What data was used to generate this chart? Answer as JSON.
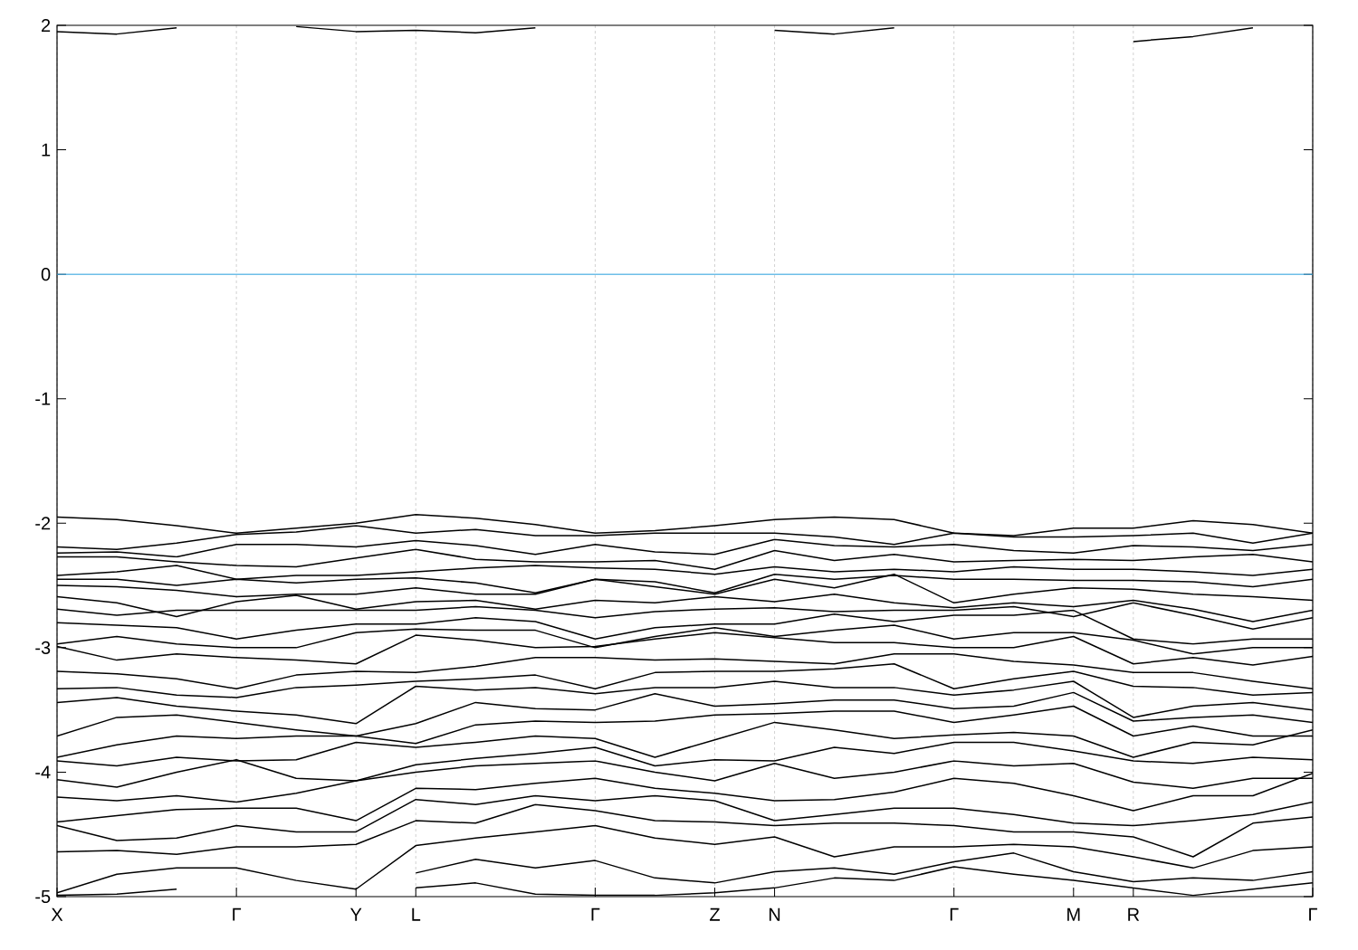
{
  "chart_data": {
    "type": "line",
    "categories": [
      "X",
      null,
      null,
      "Γ",
      null,
      "Y",
      "L",
      null,
      null,
      "Γ",
      null,
      "Z",
      "N",
      null,
      null,
      "Γ",
      null,
      "M",
      "R",
      null,
      null,
      "Γ"
    ],
    "ylim": [
      -5,
      2
    ],
    "yticks": [
      -5,
      -4,
      -3,
      -2,
      -1,
      0,
      1,
      2
    ],
    "grid": "x",
    "line_style": "solid",
    "ref_lines": [
      {
        "axis": "y",
        "value": 0,
        "color": "#3ea8e0"
      }
    ],
    "series": [
      {
        "color": "#000000",
        "values": [
          1.95,
          1.93,
          1.98,
          null,
          1.99,
          1.95,
          1.96,
          1.94,
          1.98,
          null,
          null,
          null,
          1.96,
          1.93,
          1.98,
          null,
          null,
          null,
          1.87,
          1.91,
          1.98,
          null
        ]
      },
      {
        "color": "#000000",
        "values": [
          -1.95,
          -1.97,
          -2.02,
          -2.08,
          -2.04,
          -2.0,
          -1.93,
          -1.96,
          -2.01,
          -2.08,
          -2.06,
          -2.02,
          -1.97,
          -1.95,
          -1.97,
          -2.08,
          -2.1,
          -2.04,
          -2.04,
          -1.98,
          -2.01,
          -2.08
        ]
      },
      {
        "color": "#000000",
        "values": [
          -2.19,
          -2.21,
          -2.16,
          -2.09,
          -2.07,
          -2.02,
          -2.08,
          -2.05,
          -2.1,
          -2.1,
          -2.08,
          -2.08,
          -2.08,
          -2.11,
          -2.17,
          -2.08,
          -2.11,
          -2.11,
          -2.1,
          -2.08,
          -2.16,
          -2.08
        ]
      },
      {
        "color": "#000000",
        "values": [
          -2.24,
          -2.23,
          -2.27,
          -2.17,
          -2.17,
          -2.19,
          -2.14,
          -2.18,
          -2.25,
          -2.17,
          -2.23,
          -2.25,
          -2.13,
          -2.18,
          -2.19,
          -2.17,
          -2.22,
          -2.24,
          -2.18,
          -2.19,
          -2.22,
          -2.17
        ]
      },
      {
        "color": "#000000",
        "values": [
          -2.27,
          -2.27,
          -2.31,
          -2.34,
          -2.35,
          -2.28,
          -2.21,
          -2.29,
          -2.31,
          -2.31,
          -2.3,
          -2.37,
          -2.22,
          -2.3,
          -2.25,
          -2.31,
          -2.3,
          -2.29,
          -2.3,
          -2.27,
          -2.25,
          -2.31
        ]
      },
      {
        "color": "#000000",
        "values": [
          -2.42,
          -2.39,
          -2.34,
          -2.45,
          -2.42,
          -2.42,
          -2.39,
          -2.36,
          -2.34,
          -2.36,
          -2.37,
          -2.41,
          -2.35,
          -2.39,
          -2.37,
          -2.39,
          -2.35,
          -2.37,
          -2.37,
          -2.39,
          -2.42,
          -2.37
        ]
      },
      {
        "color": "#000000",
        "values": [
          -2.45,
          -2.45,
          -2.5,
          -2.45,
          -2.48,
          -2.45,
          -2.44,
          -2.48,
          -2.56,
          -2.45,
          -2.47,
          -2.56,
          -2.41,
          -2.45,
          -2.42,
          -2.45,
          -2.45,
          -2.46,
          -2.46,
          -2.47,
          -2.51,
          -2.45
        ]
      },
      {
        "color": "#000000",
        "values": [
          -2.5,
          -2.51,
          -2.54,
          -2.59,
          -2.57,
          -2.57,
          -2.52,
          -2.57,
          -2.57,
          -2.45,
          -2.51,
          -2.57,
          -2.45,
          -2.52,
          -2.41,
          -2.64,
          -2.57,
          -2.52,
          -2.53,
          -2.57,
          -2.59,
          -2.62
        ]
      },
      {
        "color": "#000000",
        "values": [
          -2.59,
          -2.64,
          -2.75,
          -2.63,
          -2.58,
          -2.69,
          -2.63,
          -2.62,
          -2.69,
          -2.62,
          -2.64,
          -2.59,
          -2.63,
          -2.57,
          -2.64,
          -2.68,
          -2.64,
          -2.67,
          -2.62,
          -2.69,
          -2.79,
          -2.7
        ]
      },
      {
        "color": "#000000",
        "values": [
          -2.69,
          -2.74,
          -2.7,
          -2.7,
          -2.7,
          -2.7,
          -2.7,
          -2.67,
          -2.7,
          -2.76,
          -2.71,
          -2.69,
          -2.68,
          -2.71,
          -2.7,
          -2.7,
          -2.67,
          -2.75,
          -2.64,
          -2.74,
          -2.85,
          -2.76
        ]
      },
      {
        "color": "#000000",
        "values": [
          -2.8,
          -2.82,
          -2.84,
          -2.93,
          -2.86,
          -2.81,
          -2.81,
          -2.76,
          -2.79,
          -2.93,
          -2.84,
          -2.81,
          -2.81,
          -2.73,
          -2.79,
          -2.74,
          -2.74,
          -2.7,
          -2.93,
          -2.97,
          -2.93,
          -2.93
        ]
      },
      {
        "color": "#000000",
        "values": [
          -2.97,
          -2.91,
          -2.97,
          -3.0,
          -3.0,
          -2.88,
          -2.85,
          -2.86,
          -2.86,
          -3.0,
          -2.91,
          -2.84,
          -2.91,
          -2.86,
          -2.82,
          -2.93,
          -2.88,
          -2.88,
          -2.94,
          -3.05,
          -3.0,
          -3.0
        ]
      },
      {
        "color": "#000000",
        "values": [
          -2.99,
          -3.1,
          -3.05,
          -3.08,
          -3.1,
          -3.13,
          -2.9,
          -2.94,
          -3.0,
          -2.99,
          -2.93,
          -2.88,
          -2.92,
          -2.96,
          -2.96,
          -3.0,
          -3.0,
          -2.91,
          -3.13,
          -3.08,
          -3.14,
          -3.07
        ]
      },
      {
        "color": "#000000",
        "values": [
          -3.19,
          -3.21,
          -3.25,
          -3.33,
          -3.22,
          -3.19,
          -3.2,
          -3.15,
          -3.08,
          -3.08,
          -3.1,
          -3.09,
          -3.11,
          -3.13,
          -3.05,
          -3.05,
          -3.11,
          -3.14,
          -3.2,
          -3.2,
          -3.27,
          -3.33
        ]
      },
      {
        "color": "#000000",
        "values": [
          -3.33,
          -3.32,
          -3.38,
          -3.4,
          -3.32,
          -3.3,
          -3.27,
          -3.25,
          -3.22,
          -3.33,
          -3.2,
          -3.19,
          -3.19,
          -3.17,
          -3.13,
          -3.33,
          -3.25,
          -3.19,
          -3.31,
          -3.32,
          -3.38,
          -3.36
        ]
      },
      {
        "color": "#000000",
        "values": [
          -3.44,
          -3.4,
          -3.47,
          -3.51,
          -3.54,
          -3.61,
          -3.31,
          -3.34,
          -3.32,
          -3.37,
          -3.32,
          -3.32,
          -3.27,
          -3.32,
          -3.32,
          -3.38,
          -3.34,
          -3.27,
          -3.56,
          -3.47,
          -3.44,
          -3.5
        ]
      },
      {
        "color": "#000000",
        "values": [
          -3.71,
          -3.56,
          -3.54,
          -3.6,
          -3.66,
          -3.71,
          -3.61,
          -3.44,
          -3.49,
          -3.5,
          -3.37,
          -3.47,
          -3.45,
          -3.42,
          -3.42,
          -3.49,
          -3.47,
          -3.36,
          -3.59,
          -3.56,
          -3.54,
          -3.6
        ]
      },
      {
        "color": "#000000",
        "values": [
          -3.88,
          -3.78,
          -3.71,
          -3.73,
          -3.71,
          -3.71,
          -3.77,
          -3.62,
          -3.59,
          -3.6,
          -3.59,
          -3.54,
          -3.53,
          -3.51,
          -3.51,
          -3.6,
          -3.54,
          -3.47,
          -3.71,
          -3.63,
          -3.71,
          -3.71
        ]
      },
      {
        "color": "#000000",
        "values": [
          -3.91,
          -3.95,
          -3.88,
          -3.91,
          -3.9,
          -3.76,
          -3.8,
          -3.76,
          -3.71,
          -3.73,
          -3.88,
          -3.74,
          -3.6,
          -3.66,
          -3.73,
          -3.7,
          -3.68,
          -3.71,
          -3.88,
          -3.76,
          -3.78,
          -3.66
        ]
      },
      {
        "color": "#000000",
        "values": [
          -4.06,
          -4.12,
          -4.0,
          -3.9,
          -4.05,
          -4.07,
          -3.94,
          -3.89,
          -3.85,
          -3.8,
          -3.95,
          -3.9,
          -3.91,
          -3.8,
          -3.85,
          -3.76,
          -3.76,
          -3.83,
          -3.91,
          -3.93,
          -3.88,
          -3.9
        ]
      },
      {
        "color": "#000000",
        "values": [
          -4.2,
          -4.23,
          -4.19,
          -4.24,
          -4.17,
          -4.07,
          -4.0,
          -3.95,
          -3.93,
          -3.91,
          -4.0,
          -4.07,
          -3.93,
          -4.05,
          -4.0,
          -3.91,
          -3.95,
          -3.93,
          -4.08,
          -4.13,
          -4.05,
          -4.05
        ]
      },
      {
        "color": "#000000",
        "values": [
          -4.4,
          -4.35,
          -4.3,
          -4.29,
          -4.29,
          -4.39,
          -4.13,
          -4.14,
          -4.09,
          -4.05,
          -4.13,
          -4.17,
          -4.23,
          -4.22,
          -4.16,
          -4.05,
          -4.09,
          -4.19,
          -4.31,
          -4.19,
          -4.19,
          -4.01
        ]
      },
      {
        "color": "#000000",
        "values": [
          -4.43,
          -4.55,
          -4.53,
          -4.43,
          -4.48,
          -4.48,
          -4.22,
          -4.26,
          -4.19,
          -4.23,
          -4.19,
          -4.23,
          -4.39,
          -4.34,
          -4.29,
          -4.29,
          -4.34,
          -4.41,
          -4.43,
          -4.39,
          -4.34,
          -4.24
        ]
      },
      {
        "color": "#000000",
        "values": [
          -4.64,
          -4.63,
          -4.66,
          -4.6,
          -4.6,
          -4.58,
          -4.39,
          -4.41,
          -4.26,
          -4.31,
          -4.39,
          -4.4,
          -4.43,
          -4.41,
          -4.41,
          -4.43,
          -4.48,
          -4.48,
          -4.52,
          -4.68,
          -4.41,
          -4.36
        ]
      },
      {
        "color": "#000000",
        "values": [
          -4.97,
          -4.82,
          -4.77,
          -4.77,
          -4.87,
          -4.94,
          -4.59,
          -4.53,
          -4.48,
          -4.43,
          -4.53,
          -4.58,
          -4.52,
          -4.68,
          -4.6,
          -4.6,
          -4.58,
          -4.6,
          -4.68,
          -4.77,
          -4.63,
          -4.6
        ]
      },
      {
        "color": "#000000",
        "values": [
          -4.99,
          -4.98,
          -4.94,
          null,
          null,
          null,
          -4.81,
          -4.7,
          -4.77,
          -4.71,
          -4.85,
          -4.89,
          -4.8,
          -4.77,
          -4.82,
          -4.72,
          -4.65,
          -4.8,
          -4.88,
          -4.85,
          -4.87,
          -4.8
        ]
      },
      {
        "color": "#000000",
        "values": [
          null,
          null,
          null,
          null,
          null,
          null,
          -4.93,
          -4.89,
          -4.98,
          -4.99,
          -4.99,
          -4.97,
          -4.93,
          -4.85,
          -4.87,
          -4.76,
          -4.82,
          -4.87,
          -4.93,
          -4.99,
          -4.94,
          -4.89
        ]
      }
    ]
  }
}
